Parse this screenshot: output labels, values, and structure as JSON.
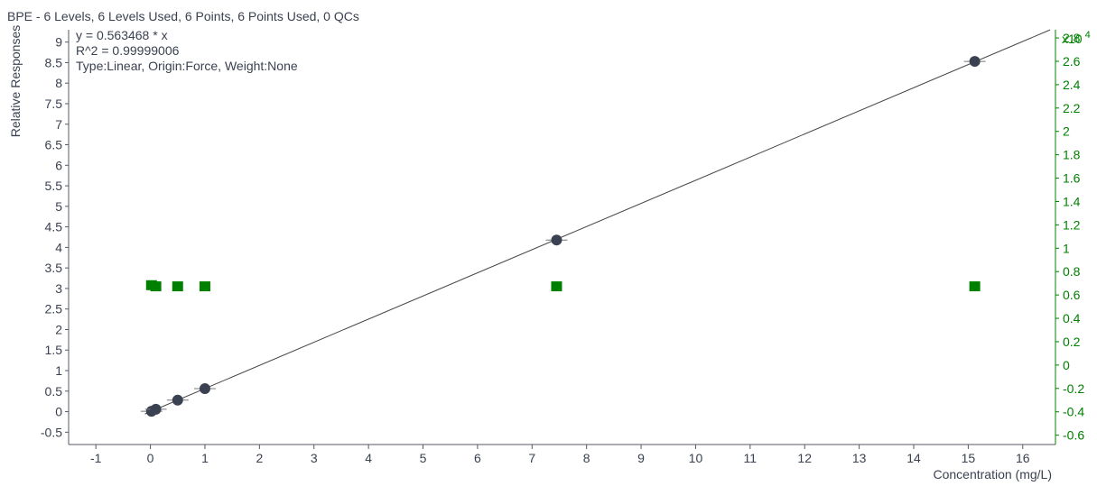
{
  "chart_data": {
    "type": "scatter",
    "title": "BPE - 6 Levels, 6 Levels Used, 6 Points, 6 Points Used, 0 QCs",
    "annotations": [
      "y = 0.563468 * x",
      "R^2 = 0.99999006",
      "Type:Linear, Origin:Force, Weight:None"
    ],
    "xlabel": "Concentration (mg/L)",
    "ylabel": "Relative Responses",
    "y2_multiplier_label": "x10",
    "y2_multiplier_exponent": "4",
    "xlim": [
      -1.5,
      16.6
    ],
    "ylim": [
      -0.8,
      9.3
    ],
    "y2lim": [
      -0.68,
      2.87
    ],
    "x_ticks": [
      "-1",
      "0",
      "1",
      "2",
      "3",
      "4",
      "5",
      "6",
      "7",
      "8",
      "9",
      "10",
      "11",
      "12",
      "13",
      "14",
      "15",
      "16"
    ],
    "y_ticks": [
      "-0.5",
      "0",
      "0.5",
      "1",
      "1.5",
      "2",
      "2.5",
      "3",
      "3.5",
      "4",
      "4.5",
      "5",
      "5.5",
      "6",
      "6.5",
      "7",
      "7.5",
      "8",
      "8.5",
      "9"
    ],
    "y2_ticks": [
      "-0.6",
      "-0.4",
      "-0.2",
      "0",
      "0.2",
      "0.4",
      "0.6",
      "0.8",
      "1",
      "1.2",
      "1.4",
      "1.6",
      "1.8",
      "2",
      "2.2",
      "2.4",
      "2.6",
      "2.8"
    ],
    "fit_line": {
      "slope": 0.563468,
      "intercept": 0,
      "x_range": [
        -0.1,
        16.5
      ]
    },
    "series": [
      {
        "name": "calibration points",
        "marker": "circle",
        "color": "#3a4150",
        "axis": "left",
        "points": [
          [
            0.02,
            0.01
          ],
          [
            0.1,
            0.06
          ],
          [
            0.5,
            0.28
          ],
          [
            1.0,
            0.56
          ],
          [
            7.45,
            4.18
          ],
          [
            15.12,
            8.53
          ]
        ]
      },
      {
        "name": "residual points",
        "marker": "square",
        "color": "#008000",
        "axis": "right",
        "points": [
          [
            0.02,
            0.68
          ],
          [
            0.1,
            0.67
          ],
          [
            0.5,
            0.67
          ],
          [
            1.0,
            0.67
          ],
          [
            7.45,
            0.67
          ],
          [
            15.12,
            0.67
          ]
        ]
      }
    ],
    "grid": false,
    "legend": "none",
    "colors": {
      "axis": "#555a66",
      "text": "#3a4150",
      "secondary": "#008000",
      "line": "#444444"
    }
  }
}
